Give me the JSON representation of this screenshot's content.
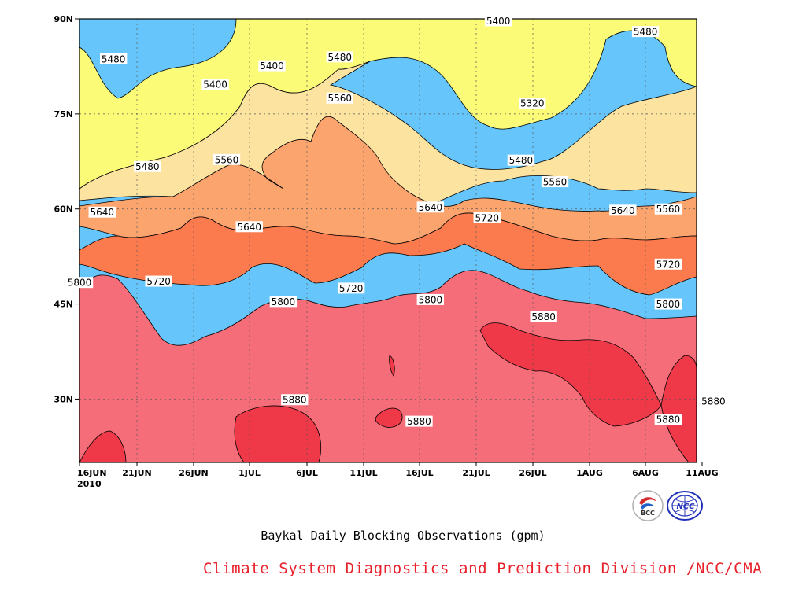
{
  "chart_data": {
    "type": "heatmap",
    "subtype": "filled-contour",
    "title": "Baykal Daily Blocking Observations (gpm)",
    "xlabel": "",
    "ylabel": "",
    "x_ticks": [
      "16JUN",
      "21JUN",
      "26JUN",
      "1JUL",
      "6JUL",
      "11JUL",
      "16JUL",
      "21JUL",
      "26JUL",
      "1AUG",
      "6AUG",
      "11AUG"
    ],
    "x_year": "2010",
    "y_ticks": [
      "30N",
      "45N",
      "60N",
      "75N",
      "90N"
    ],
    "ylim": [
      20,
      90
    ],
    "grid": true,
    "contour_levels": [
      5320,
      5400,
      5480,
      5560,
      5640,
      5720,
      5800,
      5880
    ],
    "band_colors": {
      "below_5320": "#4040e6",
      "5320_5400": "#5a8fe6",
      "5400_5480": "#66c6fb",
      "5480_5560": "#fbfb78",
      "5560_5640": "#fde3a0",
      "5640_5720": "#fba46e",
      "5720_5800": "#fb7b4e",
      "5800_5880": "#f56d78",
      "above_5880": "#ef3848"
    },
    "contour_labels": [
      {
        "text": "5480",
        "date": "19JUN",
        "lat": 83.7
      },
      {
        "text": "5400",
        "date": "3JUL",
        "lat": 82.6
      },
      {
        "text": "5480",
        "date": "9JUL",
        "lat": 84.0
      },
      {
        "text": "5400",
        "date": "23JUL",
        "lat": 89.7
      },
      {
        "text": "5480",
        "date": "5AUG",
        "lat": 88.0
      },
      {
        "text": "5400",
        "date": "28JUN",
        "lat": 79.7
      },
      {
        "text": "5560",
        "date": "9JUL",
        "lat": 77.5
      },
      {
        "text": "5320",
        "date": "26JUL",
        "lat": 76.7
      },
      {
        "text": "5480",
        "date": "22JUN",
        "lat": 66.7
      },
      {
        "text": "5560",
        "date": "29JUN",
        "lat": 67.8
      },
      {
        "text": "5480",
        "date": "25JUL",
        "lat": 67.7
      },
      {
        "text": "5560",
        "date": "28JUL",
        "lat": 64.3
      },
      {
        "text": "5640",
        "date": "18JUN",
        "lat": 59.5
      },
      {
        "text": "5640",
        "date": "1JUL",
        "lat": 57.2
      },
      {
        "text": "5640",
        "date": "17JUL",
        "lat": 60.3
      },
      {
        "text": "5720",
        "date": "22JUL",
        "lat": 58.6
      },
      {
        "text": "5640",
        "date": "3AUG",
        "lat": 59.8
      },
      {
        "text": "5560",
        "date": "7AUG",
        "lat": 60.0
      },
      {
        "text": "5800",
        "date": "16JUN",
        "lat": 48.4
      },
      {
        "text": "5720",
        "date": "23JUN",
        "lat": 48.6
      },
      {
        "text": "5720",
        "date": "10JUL",
        "lat": 47.5
      },
      {
        "text": "5720",
        "date": "7AUG",
        "lat": 51.3
      },
      {
        "text": "5800",
        "date": "4JUL",
        "lat": 45.4
      },
      {
        "text": "5800",
        "date": "17JUL",
        "lat": 45.7
      },
      {
        "text": "5800",
        "date": "7AUG",
        "lat": 45.0
      },
      {
        "text": "5880",
        "date": "27JUL",
        "lat": 43.0
      },
      {
        "text": "5880",
        "date": "5JUL",
        "lat": 29.9
      },
      {
        "text": "5880",
        "date": "16JUL",
        "lat": 26.5
      },
      {
        "text": "5880",
        "date": "7AUG",
        "lat": 26.8
      },
      {
        "text": "5880",
        "date": "11AUG",
        "lat": 29.7
      }
    ]
  },
  "caption": "Baykal Daily Blocking Observations (gpm)",
  "credit": "Climate System Diagnostics and Prediction Division /NCC/CMA",
  "logos": [
    {
      "name": "bcc-logo",
      "text": "BCC",
      "color": "#d42a2a"
    },
    {
      "name": "ncc-logo",
      "text": "NCC",
      "color": "#1f2fb8"
    }
  ]
}
